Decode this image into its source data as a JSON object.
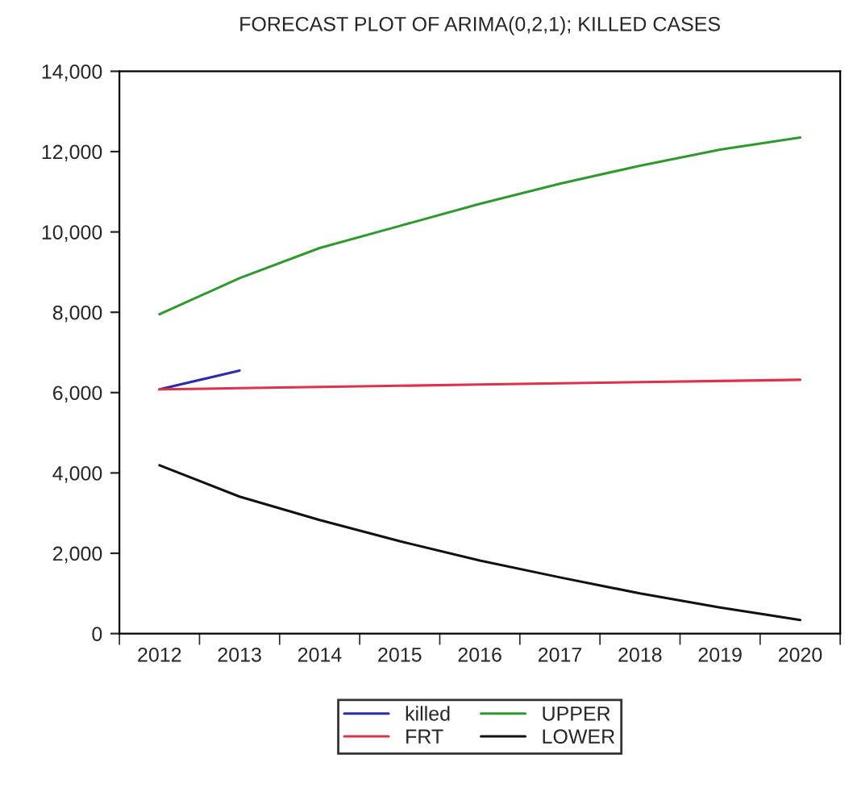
{
  "chart_data": {
    "type": "line",
    "title": "FORECAST PLOT OF ARIMA(0,2,1); KILLED CASES",
    "categories": [
      "2012",
      "2013",
      "2014",
      "2015",
      "2016",
      "2017",
      "2018",
      "2019",
      "2020"
    ],
    "series": [
      {
        "name": "killed",
        "color": "#2b2bb0",
        "values": [
          6080,
          6550,
          null,
          null,
          null,
          null,
          null,
          null,
          null
        ]
      },
      {
        "name": "FRT",
        "color": "#e0304a",
        "values": [
          6080,
          6110,
          6140,
          6170,
          6200,
          6230,
          6260,
          6290,
          6320
        ]
      },
      {
        "name": "UPPER",
        "color": "#2e9a2e",
        "values": [
          7950,
          8850,
          9600,
          10150,
          10700,
          11200,
          11650,
          12050,
          12350
        ]
      },
      {
        "name": "LOWER",
        "color": "#111111",
        "values": [
          4190,
          3410,
          2830,
          2300,
          1820,
          1400,
          1000,
          650,
          340
        ]
      }
    ],
    "ylim": [
      0,
      14000
    ],
    "yticks": [
      {
        "value": 0,
        "label": "0"
      },
      {
        "value": 2000,
        "label": "2,000"
      },
      {
        "value": 4000,
        "label": "4,000"
      },
      {
        "value": 6000,
        "label": "6,000"
      },
      {
        "value": 8000,
        "label": "8,000"
      },
      {
        "value": 10000,
        "label": "10,000"
      },
      {
        "value": 12000,
        "label": "12,000"
      },
      {
        "value": 14000,
        "label": "14,000"
      }
    ],
    "grid": false,
    "legend": "bottom",
    "marker": "none",
    "line_style": "solid"
  }
}
